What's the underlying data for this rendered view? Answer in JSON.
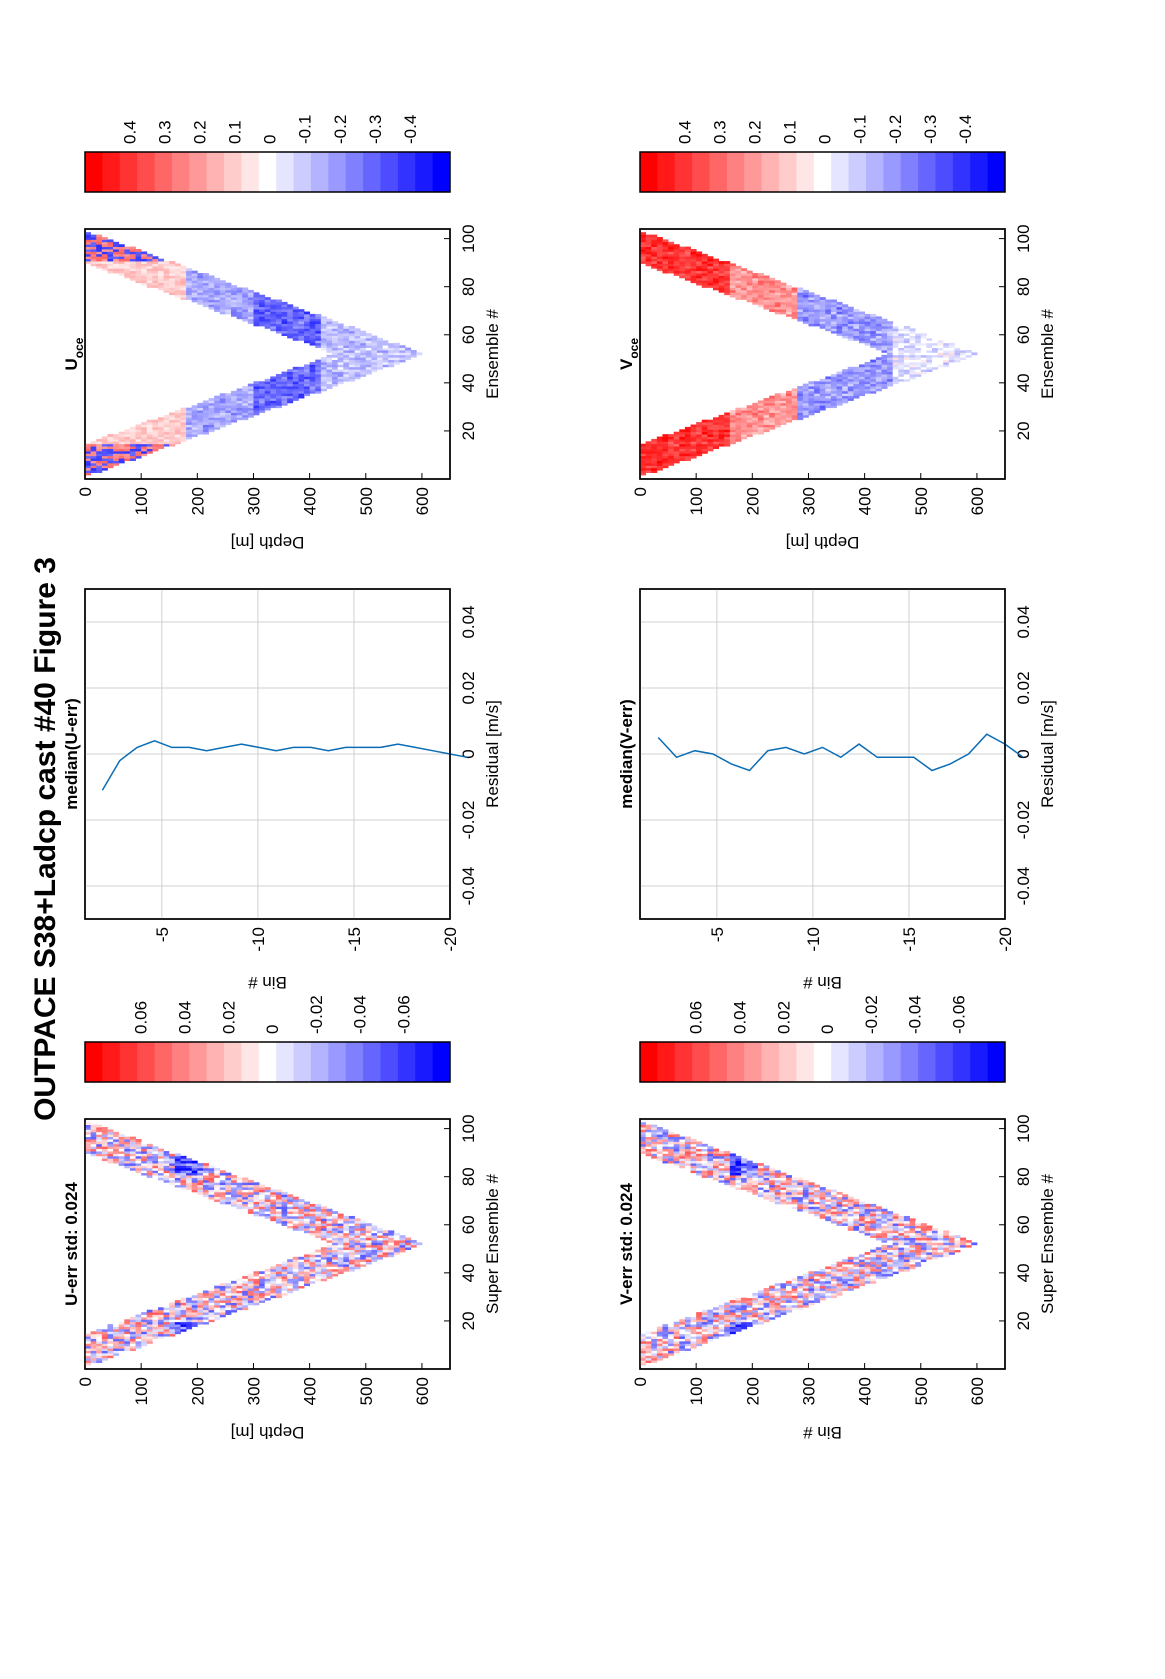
{
  "figure": {
    "title": "OUTPACE S38+Ladcp cast #40  Figure 3"
  },
  "chart_data": [
    {
      "id": "uerr",
      "type": "heatmap",
      "title": "U-err std: 0.024",
      "xlabel": "Super Ensemble #",
      "ylabel": "Depth [m]",
      "xlim": [
        0,
        104
      ],
      "ylim": [
        0,
        650
      ],
      "xticks": [
        20,
        40,
        60,
        80,
        100
      ],
      "yticks": [
        0,
        100,
        200,
        300,
        400,
        500,
        600
      ],
      "colorbar": {
        "range": [
          -0.08,
          0.08
        ],
        "ticks": [
          "0.06",
          "0.04",
          "0.02",
          "0",
          "-0.02",
          "-0.04",
          "-0.06"
        ]
      },
      "description_profile": {
        "max_depth_at_ensemble": [
          50,
          620
        ]
      }
    },
    {
      "id": "medu",
      "type": "line",
      "title": "median(U-err)",
      "xlabel": "Residual [m/s]",
      "ylabel": "Bin #",
      "xlim": [
        -0.05,
        0.05
      ],
      "ylim": [
        -20,
        -1
      ],
      "xticks": [
        "-0.04",
        "-0.02",
        "0",
        "0.02",
        "0.04"
      ],
      "yticks": [
        "-5",
        "-10",
        "-15",
        "-20"
      ],
      "grid": true,
      "series": [
        {
          "x": [
            -0.011,
            -0.002,
            0.002,
            0.004,
            0.002,
            0.002,
            0.001,
            0.002,
            0.003,
            0.002,
            0.001,
            0.002,
            0.002,
            0.001,
            0.002,
            0.002,
            0.002,
            0.003,
            0.002,
            0.001,
            0.0,
            -0.001
          ],
          "bin": [
            -1,
            -2,
            -3,
            -4,
            -5,
            -6,
            -7,
            -8,
            -9,
            -10,
            -11,
            -12,
            -13,
            -14,
            -15,
            -16,
            -17,
            -18,
            -19,
            -20,
            -21,
            -22
          ]
        }
      ]
    },
    {
      "id": "uoce",
      "type": "heatmap",
      "title": "U",
      "title_sub": "oce",
      "xlabel": "Ensemble #",
      "ylabel": "Depth [m]",
      "xlim": [
        0,
        104
      ],
      "ylim": [
        0,
        650
      ],
      "xticks": [
        20,
        40,
        60,
        80,
        100
      ],
      "yticks": [
        0,
        100,
        200,
        300,
        400,
        500,
        600
      ],
      "colorbar": {
        "range": [
          -0.45,
          0.45
        ],
        "ticks": [
          "0.4",
          "0.3",
          "0.2",
          "0.1",
          "0",
          "-0.1",
          "-0.2",
          "-0.3",
          "-0.4"
        ]
      }
    },
    {
      "id": "verr",
      "type": "heatmap",
      "title": "V-err std: 0.024",
      "xlabel": "Super Ensemble #",
      "ylabel": "Bin #",
      "xlim": [
        0,
        104
      ],
      "ylim": [
        0,
        650
      ],
      "xticks": [
        20,
        40,
        60,
        80,
        100
      ],
      "yticks": [
        0,
        100,
        200,
        300,
        400,
        500,
        600
      ],
      "colorbar": {
        "range": [
          -0.08,
          0.08
        ],
        "ticks": [
          "0.06",
          "0.04",
          "0.02",
          "0",
          "-0.02",
          "-0.04",
          "-0.06"
        ]
      }
    },
    {
      "id": "medv",
      "type": "line",
      "title": "median(V-err)",
      "xlabel": "Residual [m/s]",
      "ylabel": "Bin #",
      "xlim": [
        -0.05,
        0.05
      ],
      "ylim": [
        -20,
        -1
      ],
      "xticks": [
        "-0.04",
        "-0.02",
        "0",
        "0.02",
        "0.04"
      ],
      "yticks": [
        "-5",
        "-10",
        "-15",
        "-20"
      ],
      "grid": true,
      "series": [
        {
          "x": [
            0.005,
            -0.001,
            0.001,
            0.0,
            -0.003,
            -0.005,
            0.001,
            0.002,
            0.0,
            0.002,
            -0.001,
            0.003,
            -0.001,
            -0.001,
            -0.001,
            -0.005,
            -0.003,
            0.0,
            0.006,
            0.003,
            -0.001
          ],
          "bin": [
            -1,
            -2,
            -3,
            -4,
            -5,
            -6,
            -7,
            -8,
            -9,
            -10,
            -11,
            -12,
            -13,
            -14,
            -15,
            -16,
            -17,
            -18,
            -19,
            -20,
            -21
          ]
        }
      ]
    },
    {
      "id": "voce",
      "type": "heatmap",
      "title": "V",
      "title_sub": "oce",
      "xlabel": "Ensemble #",
      "ylabel": "Depth [m]",
      "xlim": [
        0,
        104
      ],
      "ylim": [
        0,
        650
      ],
      "xticks": [
        20,
        40,
        60,
        80,
        100
      ],
      "yticks": [
        0,
        100,
        200,
        300,
        400,
        500,
        600
      ],
      "colorbar": {
        "range": [
          -0.45,
          0.45
        ],
        "ticks": [
          "0.4",
          "0.3",
          "0.2",
          "0.1",
          "0",
          "-0.1",
          "-0.2",
          "-0.3",
          "-0.4"
        ]
      }
    }
  ],
  "colors": {
    "line": "#0b6db5",
    "red": "#ff0000",
    "blue": "#0000ff",
    "grid": "#d0d0d0"
  }
}
